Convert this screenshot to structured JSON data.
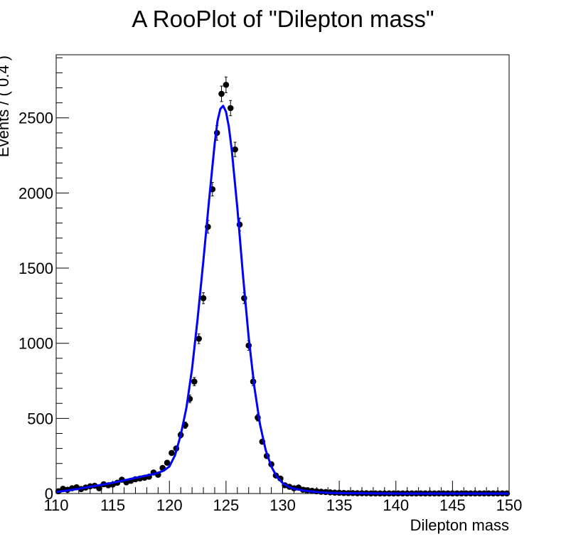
{
  "chart_data": {
    "type": "scatter",
    "title": "A RooPlot of \"Dilepton mass\"",
    "xlabel": "Dilepton mass",
    "ylabel": "Events / ( 0.4 )",
    "xlim": [
      110,
      150
    ],
    "ylim": [
      0,
      2920
    ],
    "x_ticks": [
      "110",
      "115",
      "120",
      "125",
      "130",
      "135",
      "140",
      "145",
      "150"
    ],
    "y_ticks": [
      "0",
      "500",
      "1000",
      "1500",
      "2000",
      "2500"
    ],
    "grid": false,
    "colors": {
      "data_points": "#000000",
      "fit_curve": "#0000ff",
      "frame": "#000000"
    },
    "series": [
      {
        "type": "points-with-errors",
        "x": [
          110.2,
          110.6,
          111.0,
          111.4,
          111.8,
          112.2,
          112.6,
          113.0,
          113.4,
          113.8,
          114.2,
          114.6,
          115.0,
          115.4,
          115.8,
          116.2,
          116.6,
          117.0,
          117.4,
          117.8,
          118.2,
          118.6,
          119.0,
          119.4,
          119.8,
          120.2,
          120.6,
          121.0,
          121.4,
          121.8,
          122.2,
          122.6,
          123.0,
          123.4,
          123.8,
          124.2,
          124.6,
          125.0,
          125.4,
          125.8,
          126.2,
          126.6,
          127.0,
          127.4,
          127.8,
          128.2,
          128.6,
          129.0,
          129.4,
          129.8,
          130.2,
          130.6,
          131.0,
          131.4,
          131.8,
          132.2,
          132.6,
          133.0,
          133.4,
          133.8,
          134.2,
          134.6,
          135.0,
          135.4,
          135.8,
          136.2,
          136.6,
          137.0,
          137.4,
          137.8,
          138.2,
          138.6,
          139.0,
          139.4,
          139.8,
          140.2,
          140.6,
          141.0,
          141.4,
          141.8,
          142.2,
          142.6,
          143.0,
          143.4,
          143.8,
          144.2,
          144.6,
          145.0,
          145.4,
          145.8,
          146.2,
          146.6,
          147.0,
          147.4,
          147.8,
          148.2,
          148.6,
          149.0,
          149.4,
          149.8
        ],
        "y": [
          15,
          32,
          25,
          35,
          42,
          30,
          40,
          48,
          52,
          35,
          62,
          55,
          60,
          72,
          92,
          75,
          85,
          95,
          100,
          105,
          112,
          140,
          125,
          170,
          205,
          270,
          300,
          390,
          455,
          630,
          745,
          1030,
          1300,
          1775,
          2025,
          2400,
          2660,
          2720,
          2565,
          2290,
          1790,
          1300,
          985,
          745,
          505,
          345,
          250,
          195,
          120,
          100,
          55,
          45,
          35,
          40,
          25,
          22,
          18,
          15,
          12,
          10,
          8,
          6,
          5,
          4,
          3,
          3,
          2,
          2,
          2,
          1,
          1,
          1,
          1,
          1,
          1,
          1,
          1,
          1,
          1,
          1,
          1,
          1,
          1,
          1,
          1,
          1,
          1,
          1,
          1,
          1,
          1,
          1,
          1,
          1,
          1,
          1,
          1,
          1,
          1,
          1
        ]
      },
      {
        "type": "line",
        "x": [
          110,
          111,
          112,
          113,
          114,
          115,
          116,
          117,
          118,
          118.5,
          119,
          119.5,
          120,
          120.5,
          121,
          121.5,
          122,
          122.5,
          123,
          123.5,
          124,
          124.25,
          124.5,
          124.75,
          125,
          125.25,
          125.5,
          126,
          126.5,
          127,
          127.5,
          128,
          128.5,
          129,
          129.5,
          130,
          130.5,
          131,
          132,
          133,
          134,
          135,
          136,
          138,
          140,
          145,
          150
        ],
        "y": [
          10,
          20,
          32,
          45,
          58,
          72,
          88,
          104,
          120,
          128,
          138,
          152,
          180,
          255,
          390,
          570,
          830,
          1170,
          1550,
          1950,
          2330,
          2480,
          2560,
          2580,
          2540,
          2440,
          2290,
          1900,
          1450,
          1040,
          710,
          460,
          290,
          180,
          110,
          70,
          45,
          32,
          18,
          10,
          5,
          3,
          2,
          1,
          0,
          0,
          0
        ]
      }
    ]
  }
}
